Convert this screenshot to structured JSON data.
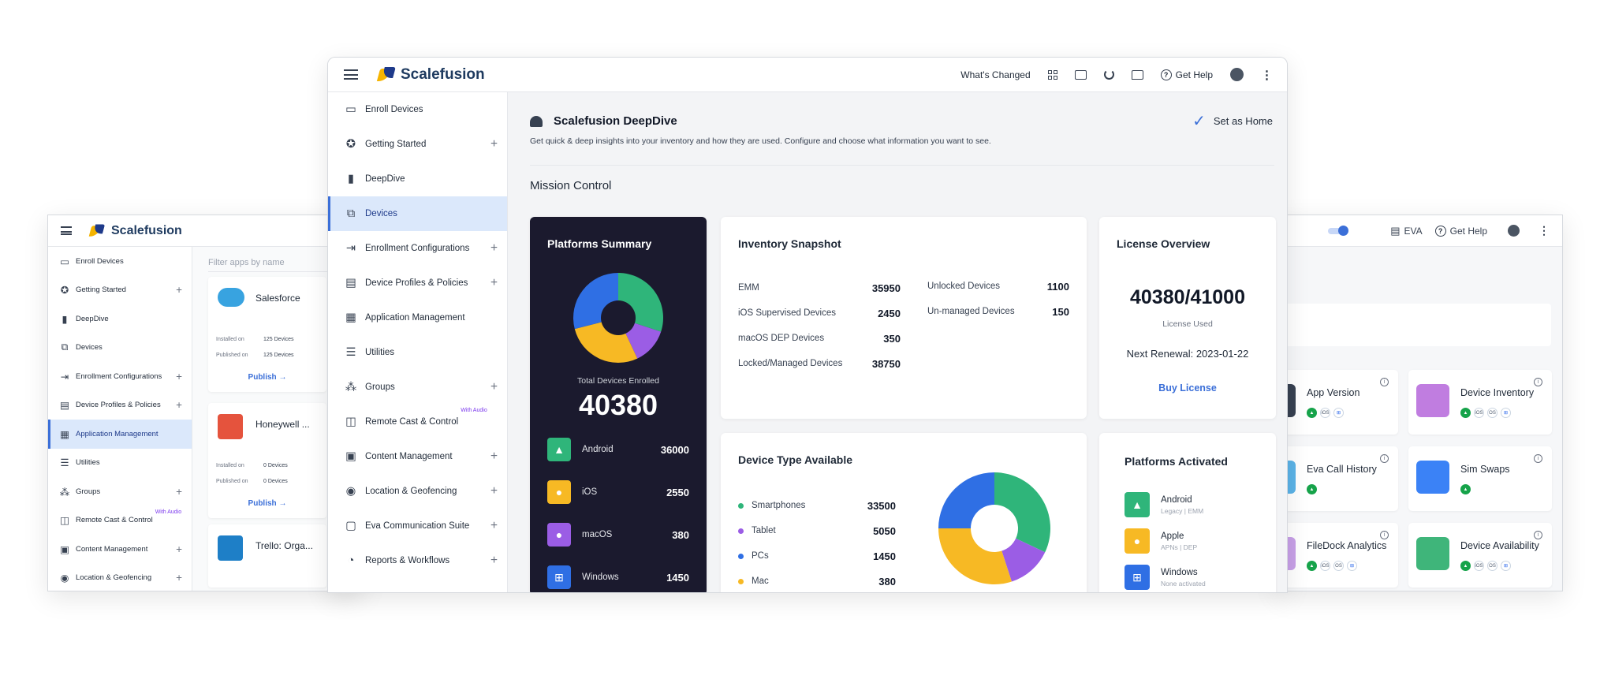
{
  "left_window": {
    "brand": "Scalefusion",
    "search_placeholder": "Filter apps by name",
    "sidebar": [
      {
        "label": "Enroll Devices",
        "icon": "laptop-icon",
        "plus": false
      },
      {
        "label": "Getting Started",
        "icon": "star-icon",
        "plus": true
      },
      {
        "label": "DeepDive",
        "icon": "bar-chart-icon",
        "plus": false
      },
      {
        "label": "Devices",
        "icon": "devices-icon",
        "plus": false
      },
      {
        "label": "Enrollment Configurations",
        "icon": "enroll-icon",
        "plus": true
      },
      {
        "label": "Device Profiles & Policies",
        "icon": "clipboard-icon",
        "plus": true
      },
      {
        "label": "Application Management",
        "icon": "grid-icon",
        "plus": false,
        "active": true
      },
      {
        "label": "Utilities",
        "icon": "sliders-icon",
        "plus": false
      },
      {
        "label": "Groups",
        "icon": "groups-icon",
        "plus": true
      },
      {
        "label": "Remote Cast & Control",
        "icon": "cast-icon",
        "plus": false,
        "sup": "With Audio"
      },
      {
        "label": "Content Management",
        "icon": "image-icon",
        "plus": true
      },
      {
        "label": "Location & Geofencing",
        "icon": "location-icon",
        "plus": true
      }
    ],
    "apps": [
      {
        "name": "Salesforce",
        "installed_label": "Installed on",
        "installed": "125 Devices",
        "published_label": "Published on",
        "published": "125 Devices",
        "action": "Publish →"
      },
      {
        "name": "Honeywell ...",
        "installed_label": "Installed on",
        "installed": "0 Devices",
        "published_label": "Published on",
        "published": "0 Devices",
        "action": "Publish →"
      },
      {
        "name": "Trello: Orga..."
      }
    ]
  },
  "right_window": {
    "eva_label": "EVA",
    "help_label": "Get Help",
    "tiles": [
      {
        "title": "App Version",
        "badges": [
          "android",
          "ios",
          "windows"
        ]
      },
      {
        "title": "Device Inventory",
        "badges": [
          "android",
          "ios",
          "macos",
          "windows"
        ]
      },
      {
        "title": "Eva Call History",
        "badges": [
          "android"
        ]
      },
      {
        "title": "Sim Swaps",
        "badges": [
          "android"
        ]
      },
      {
        "title": "FileDock Analytics",
        "badges": [
          "android",
          "ios",
          "macos",
          "windows"
        ]
      },
      {
        "title": "Device Availability",
        "badges": [
          "android",
          "ios",
          "macos",
          "windows"
        ]
      }
    ]
  },
  "main_window": {
    "brand": "Scalefusion",
    "topbar": {
      "whats_changed": "What's Changed",
      "get_help": "Get Help"
    },
    "sidebar": [
      {
        "label": "Enroll Devices",
        "icon": "laptop-icon",
        "plus": false
      },
      {
        "label": "Getting Started",
        "icon": "star-icon",
        "plus": true
      },
      {
        "label": "DeepDive",
        "icon": "bar-chart-icon",
        "plus": false
      },
      {
        "label": "Devices",
        "icon": "devices-icon",
        "plus": false,
        "active": true
      },
      {
        "label": "Enrollment Configurations",
        "icon": "enroll-icon",
        "plus": true
      },
      {
        "label": "Device Profiles & Policies",
        "icon": "clipboard-icon",
        "plus": true
      },
      {
        "label": "Application Management",
        "icon": "grid-icon",
        "plus": false
      },
      {
        "label": "Utilities",
        "icon": "sliders-icon",
        "plus": false
      },
      {
        "label": "Groups",
        "icon": "groups-icon",
        "plus": true
      },
      {
        "label": "Remote Cast & Control",
        "icon": "cast-icon",
        "plus": false,
        "sup": "With Audio"
      },
      {
        "label": "Content Management",
        "icon": "image-icon",
        "plus": true
      },
      {
        "label": "Location & Geofencing",
        "icon": "location-icon",
        "plus": true
      },
      {
        "label": "Eva Communication Suite",
        "icon": "chat-icon",
        "plus": true
      },
      {
        "label": "Reports & Workflows",
        "icon": "reports-icon",
        "plus": true
      }
    ],
    "header": {
      "title": "Scalefusion DeepDive",
      "subtitle": "Get quick & deep insights into your inventory and how they are used. Configure and choose what information you want to see.",
      "set_home": "Set as Home"
    },
    "section_title": "Mission Control",
    "platforms_summary": {
      "title": "Platforms Summary",
      "total_label": "Total Devices Enrolled",
      "total": "40380",
      "items": [
        {
          "name": "Android",
          "value": "36000",
          "color": "#2fb57a",
          "icon": "android-icon"
        },
        {
          "name": "iOS",
          "value": "2550",
          "color": "#f7b924",
          "icon": "apple-icon"
        },
        {
          "name": "macOS",
          "value": "380",
          "color": "#9b5de5",
          "icon": "apple-icon"
        },
        {
          "name": "Windows",
          "value": "1450",
          "color": "#2f6fe4",
          "icon": "windows-icon"
        }
      ]
    },
    "inventory": {
      "title": "Inventory Snapshot",
      "left": [
        {
          "label": "EMM",
          "value": "35950"
        },
        {
          "label": "iOS Supervised Devices",
          "value": "2450"
        },
        {
          "label": "macOS DEP Devices",
          "value": "350"
        },
        {
          "label": "Locked/Managed Devices",
          "value": "38750"
        }
      ],
      "right": [
        {
          "label": "Unlocked Devices",
          "value": "1100"
        },
        {
          "label": "Un-managed Devices",
          "value": "150"
        }
      ]
    },
    "license": {
      "title": "License Overview",
      "count": "40380/41000",
      "used_label": "License Used",
      "renewal": "Next Renewal: 2023-01-22",
      "buy": "Buy License"
    },
    "device_types": {
      "title": "Device Type Available",
      "items": [
        {
          "label": "Smartphones",
          "value": "33500",
          "color": "#2fb57a"
        },
        {
          "label": "Tablet",
          "value": "5050",
          "color": "#9b5de5"
        },
        {
          "label": "PCs",
          "value": "1450",
          "color": "#2f6fe4"
        },
        {
          "label": "Mac",
          "value": "380",
          "color": "#f7b924"
        }
      ]
    },
    "platforms_activated": {
      "title": "Platforms Activated",
      "items": [
        {
          "name": "Android",
          "sub": "Legacy | EMM",
          "color": "#2fb57a",
          "icon": "android-icon"
        },
        {
          "name": "Apple",
          "sub": "APNs | DEP",
          "color": "#f7b924",
          "icon": "apple-icon"
        },
        {
          "name": "Windows",
          "sub": "None activated",
          "color": "#2f6fe4",
          "icon": "windows-icon"
        }
      ]
    }
  }
}
